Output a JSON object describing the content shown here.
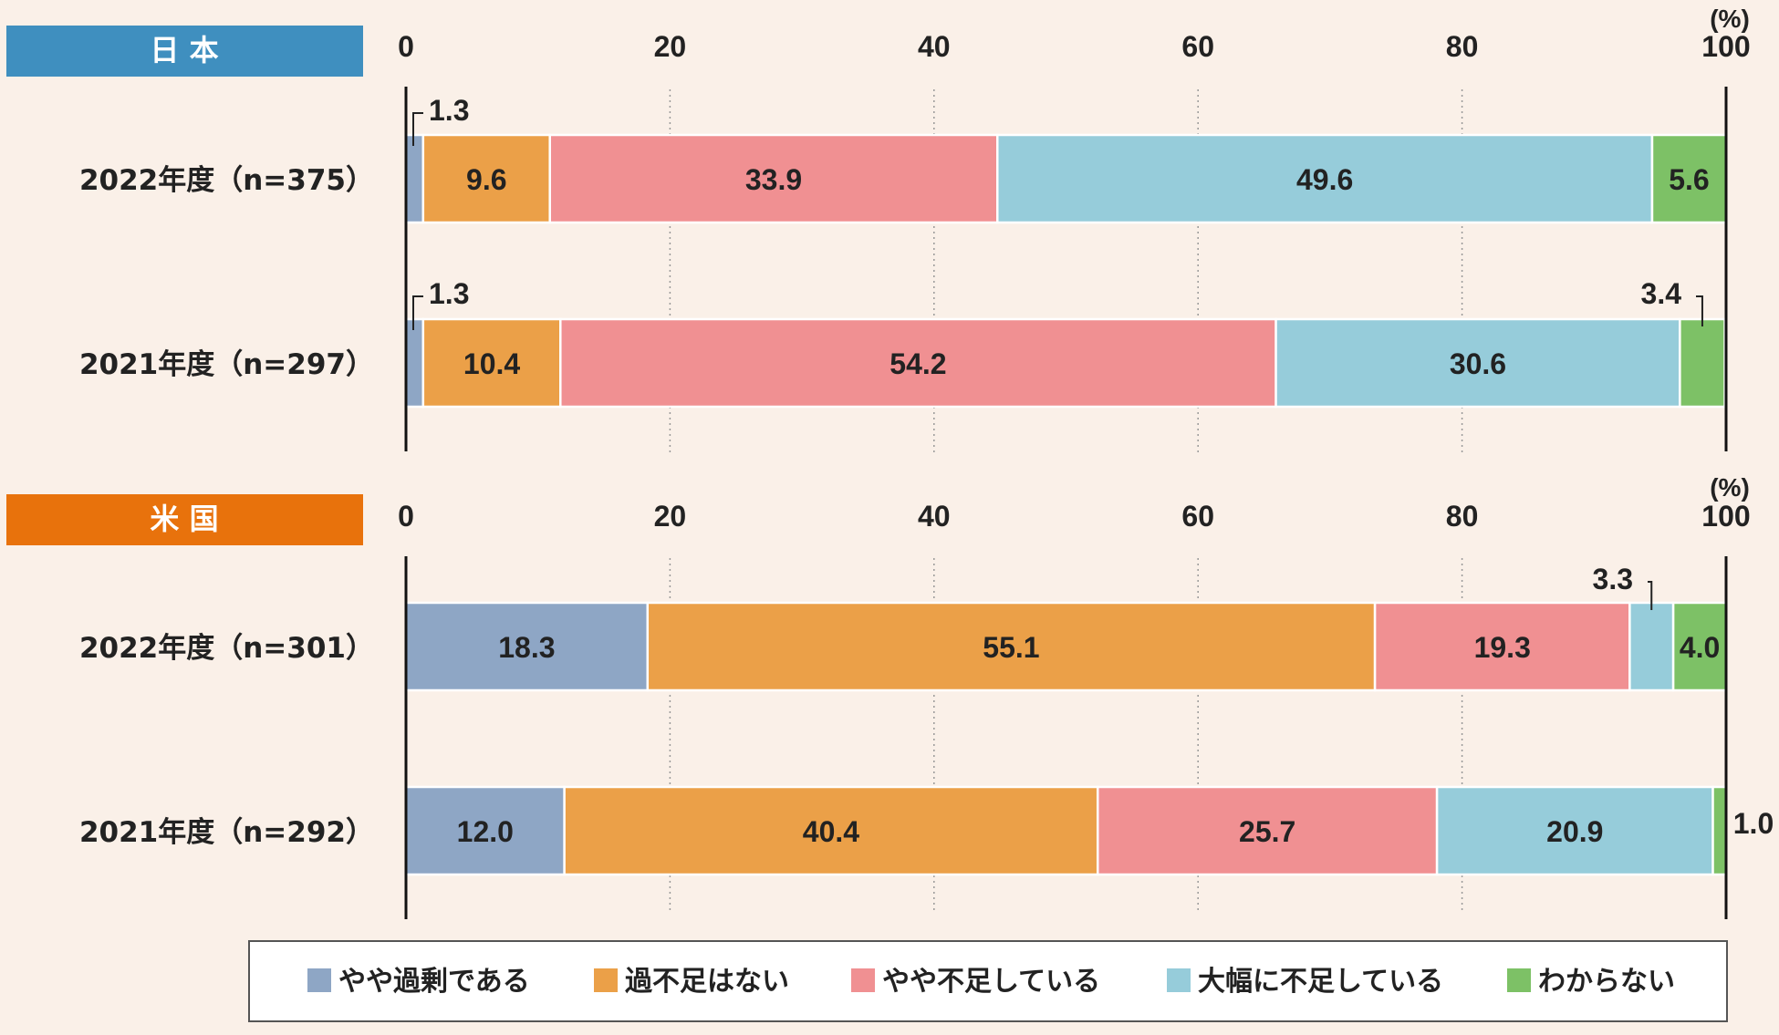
{
  "unit_label": "(%)",
  "colors": {
    "background": "#FAF0E8",
    "japan_header": "#3F8FBF",
    "us_header": "#E8720C",
    "series": [
      "#8EA6C5",
      "#EBA048",
      "#F09092",
      "#96CCDA",
      "#7DC166"
    ]
  },
  "legend": [
    "やや過剰である",
    "過不足はない",
    "やや不足している",
    "大幅に不足している",
    "わからない"
  ],
  "chart_data": [
    {
      "type": "bar",
      "orientation": "horizontal",
      "stacked": true,
      "title": "日 本",
      "xlim": [
        0,
        100
      ],
      "xticks": [
        0,
        20,
        40,
        60,
        80,
        100
      ],
      "categories": [
        "2022年度（n=375）",
        "2021年度（n=297）"
      ],
      "series": [
        {
          "name": "やや過剰である",
          "values": [
            1.3,
            1.3
          ]
        },
        {
          "name": "過不足はない",
          "values": [
            9.6,
            10.4
          ]
        },
        {
          "name": "やや不足している",
          "values": [
            33.9,
            54.2
          ]
        },
        {
          "name": "大幅に不足している",
          "values": [
            49.6,
            30.6
          ]
        },
        {
          "name": "わからない",
          "values": [
            5.6,
            3.4
          ]
        }
      ],
      "grid": true,
      "legend_position": "bottom"
    },
    {
      "type": "bar",
      "orientation": "horizontal",
      "stacked": true,
      "title": "米 国",
      "xlim": [
        0,
        100
      ],
      "xticks": [
        0,
        20,
        40,
        60,
        80,
        100
      ],
      "categories": [
        "2022年度（n=301）",
        "2021年度（n=292）"
      ],
      "series": [
        {
          "name": "やや過剰である",
          "values": [
            18.3,
            12.0
          ]
        },
        {
          "name": "過不足はない",
          "values": [
            55.1,
            40.4
          ]
        },
        {
          "name": "やや不足している",
          "values": [
            19.3,
            25.7
          ]
        },
        {
          "name": "大幅に不足している",
          "values": [
            3.3,
            20.9
          ]
        },
        {
          "name": "わからない",
          "values": [
            4.0,
            1.0
          ]
        }
      ],
      "grid": true,
      "legend_position": "bottom"
    }
  ]
}
